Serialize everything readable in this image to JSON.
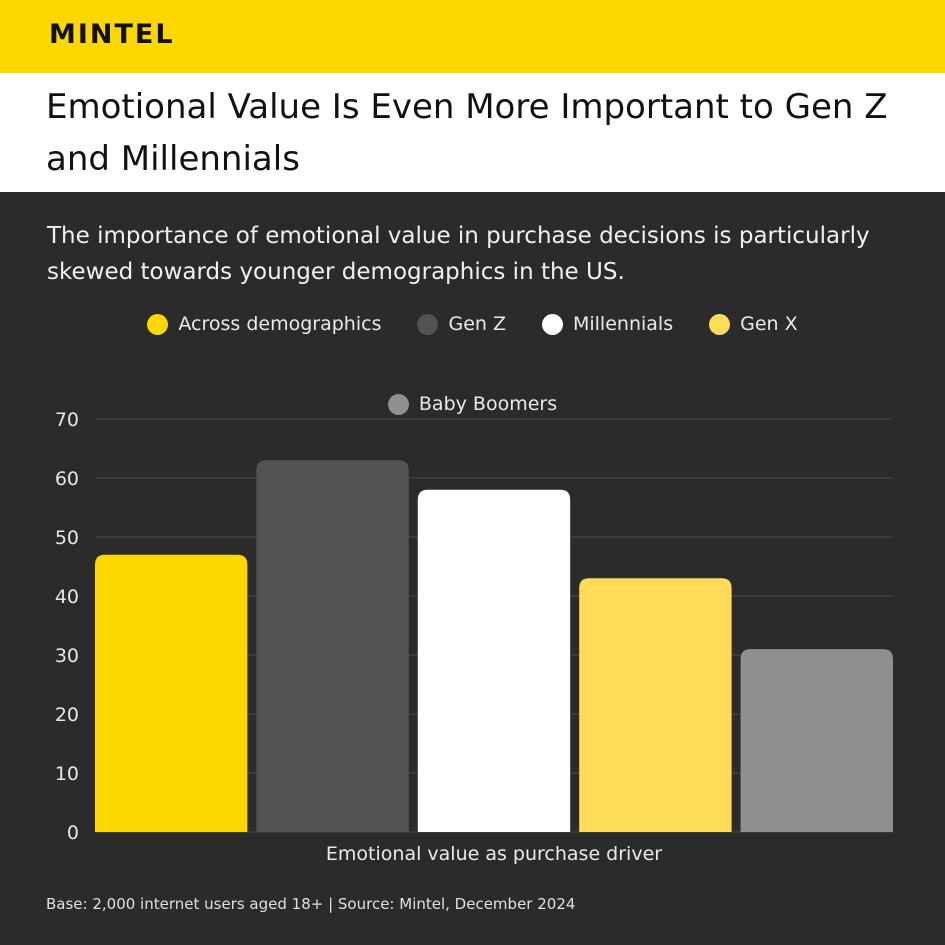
{
  "brand": {
    "logo_text": "MINTEL"
  },
  "header": {
    "title": "Emotional Value Is Even More Important to Gen Z and Millennials",
    "subtitle": "The importance of emotional value in purchase decisions is particularly skewed towards younger demographics in the US."
  },
  "colors": {
    "brand_yellow": "#fdd800",
    "background": "#2b2b2b",
    "gridline": "#4a4a4a"
  },
  "chart_data": {
    "type": "bar",
    "categories": [
      "Emotional value as purchase driver"
    ],
    "xlabel": "Emotional value as purchase driver",
    "ylabel": "",
    "ylim": [
      0,
      70
    ],
    "yticks": [
      0,
      10,
      20,
      30,
      40,
      50,
      60,
      70
    ],
    "grid": true,
    "legend_position": "top-center",
    "series": [
      {
        "name": "Across demographics",
        "values": [
          47
        ],
        "color": "#fdd800"
      },
      {
        "name": "Gen Z",
        "values": [
          63
        ],
        "color": "#535353"
      },
      {
        "name": "Millennials",
        "values": [
          58
        ],
        "color": "#ffffff"
      },
      {
        "name": "Gen X",
        "values": [
          43
        ],
        "color": "#fedc5a"
      },
      {
        "name": "Baby Boomers",
        "values": [
          31
        ],
        "color": "#8f8f91"
      }
    ]
  },
  "footer": {
    "note": "Base: 2,000 internet users aged 18+ | Source: Mintel, December 2024"
  }
}
